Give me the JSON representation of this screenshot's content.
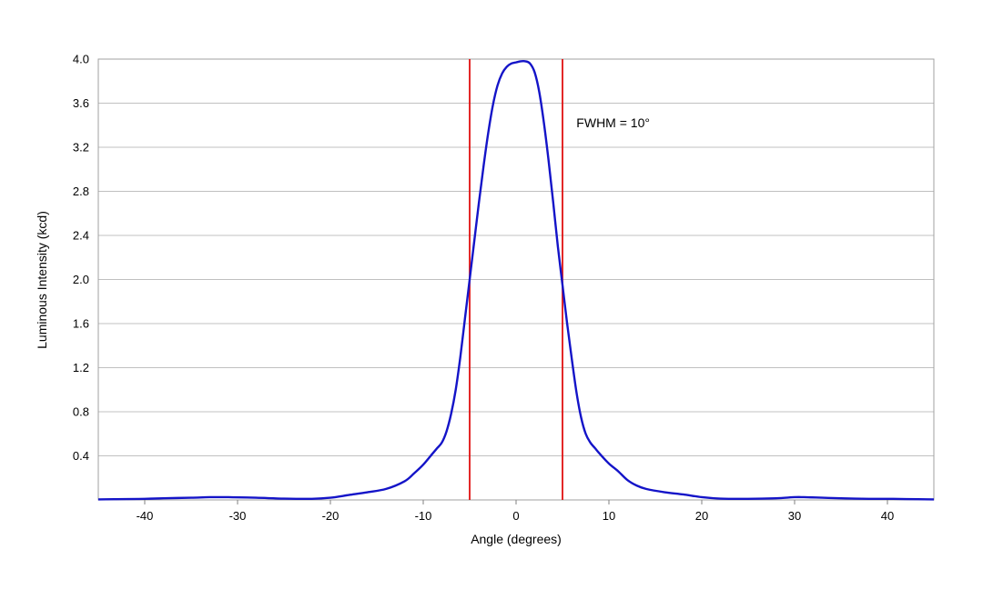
{
  "chart_data": {
    "type": "line",
    "title": "",
    "xlabel": "Angle (degrees)",
    "ylabel": "Luminous Intensity (kcd)",
    "xlim": [
      -45,
      45
    ],
    "ylim": [
      0,
      4.0
    ],
    "x_ticks": [
      "-40",
      "-30",
      "-20",
      "-10",
      "0",
      "10",
      "20",
      "30",
      "40"
    ],
    "y_ticks": [
      "0.4",
      "0.8",
      "1.2",
      "1.6",
      "2.0",
      "2.4",
      "2.8",
      "3.2",
      "3.6",
      "4.0"
    ],
    "grid": "horizontal",
    "colors": {
      "series": "#1414c8",
      "markers": "#e01010",
      "grid": "#c0c0c0",
      "frame": "#a0a0a0"
    },
    "series": [
      {
        "x": [
          -45,
          -42,
          -40,
          -38,
          -35,
          -33,
          -31,
          -28,
          -25,
          -22,
          -20,
          -18,
          -16,
          -14,
          -12,
          -11,
          -10,
          -9,
          -8.5,
          -8,
          -7.5,
          -7,
          -6.5,
          -6,
          -5.5,
          -5,
          -4.5,
          -4,
          -3.5,
          -3,
          -2.5,
          -2,
          -1.5,
          -1,
          -0.5,
          0,
          0.5,
          1,
          1.5,
          2,
          2.5,
          3,
          3.5,
          4,
          4.5,
          5,
          5.5,
          6,
          6.5,
          7,
          7.5,
          8,
          8.5,
          9,
          10,
          11,
          12,
          13,
          14,
          16,
          18,
          20,
          22,
          25,
          28,
          30,
          31,
          33,
          35,
          38,
          40,
          42,
          45
        ],
        "y": [
          0.005,
          0.008,
          0.01,
          0.015,
          0.02,
          0.025,
          0.025,
          0.02,
          0.012,
          0.01,
          0.02,
          0.045,
          0.07,
          0.1,
          0.17,
          0.24,
          0.32,
          0.42,
          0.47,
          0.52,
          0.62,
          0.78,
          1.0,
          1.3,
          1.65,
          2.0,
          2.35,
          2.7,
          3.03,
          3.33,
          3.58,
          3.76,
          3.87,
          3.93,
          3.96,
          3.97,
          3.98,
          3.98,
          3.96,
          3.88,
          3.7,
          3.42,
          3.08,
          2.7,
          2.3,
          1.95,
          1.6,
          1.28,
          0.98,
          0.75,
          0.6,
          0.52,
          0.47,
          0.42,
          0.33,
          0.26,
          0.18,
          0.13,
          0.1,
          0.07,
          0.05,
          0.025,
          0.012,
          0.01,
          0.015,
          0.025,
          0.025,
          0.02,
          0.015,
          0.01,
          0.01,
          0.008,
          0.005
        ]
      }
    ],
    "vertical_lines": [
      -5,
      5
    ],
    "annotations": [
      {
        "text": "FWHM = 10°",
        "x": 6.5,
        "y": 3.38
      }
    ]
  }
}
